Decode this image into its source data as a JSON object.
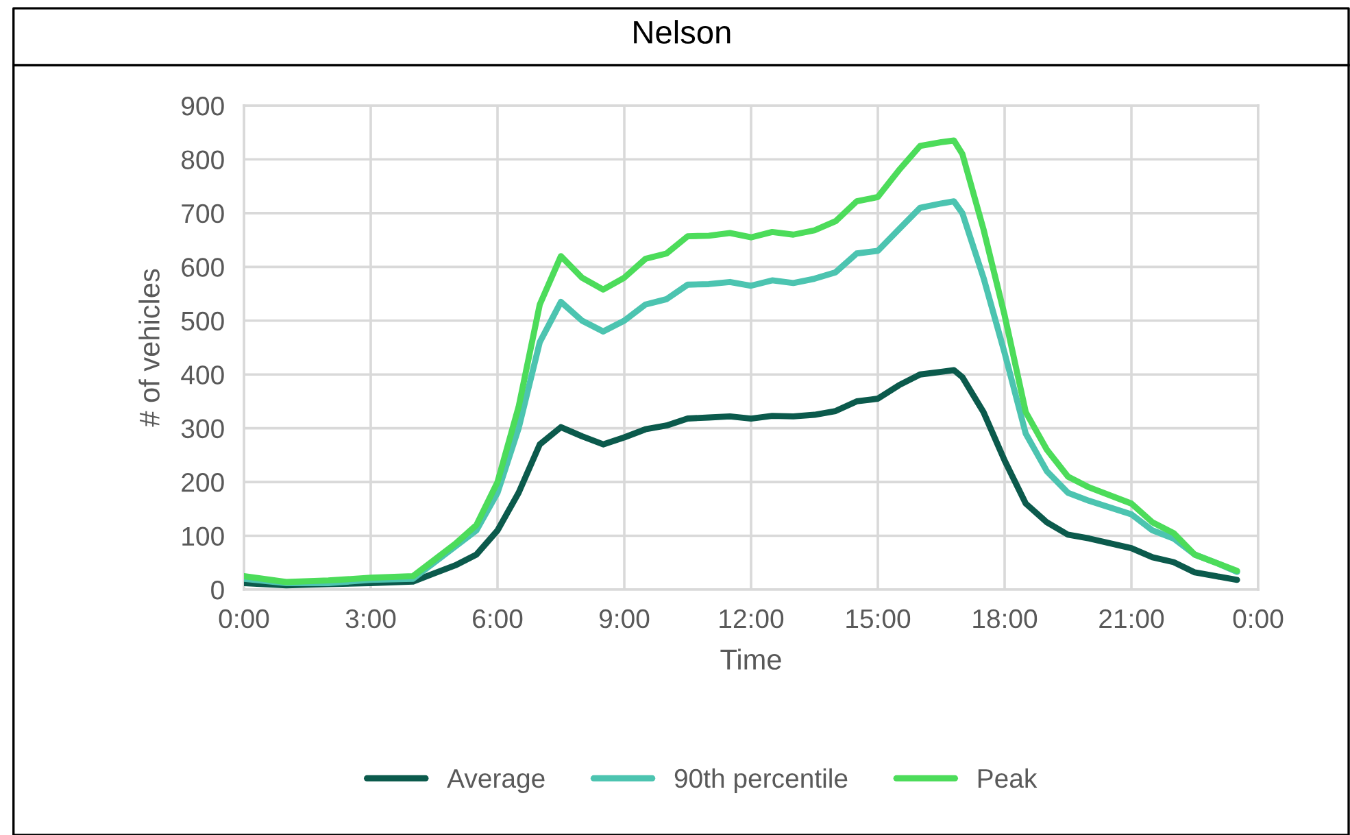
{
  "chart_data": {
    "type": "line",
    "title": "Nelson",
    "xlabel": "Time",
    "ylabel": "# of vehicles",
    "x": [
      0,
      1,
      2,
      3,
      4,
      4.5,
      5,
      5.5,
      6,
      6.5,
      7,
      7.5,
      8,
      8.5,
      9,
      9.5,
      10,
      10.5,
      11,
      11.5,
      12,
      12.5,
      13,
      13.5,
      14,
      14.5,
      15,
      15.5,
      16,
      16.5,
      16.8,
      17,
      17.5,
      18,
      18.5,
      19,
      19.5,
      20,
      21,
      21.5,
      22,
      22.5,
      23,
      23.5
    ],
    "series": [
      {
        "name": "Average",
        "color": "#0b5a4c",
        "values": [
          12,
          8,
          10,
          12,
          15,
          30,
          45,
          65,
          110,
          180,
          270,
          302,
          285,
          270,
          283,
          298,
          305,
          318,
          320,
          322,
          318,
          323,
          322,
          325,
          332,
          350,
          355,
          380,
          400,
          405,
          408,
          395,
          330,
          240,
          160,
          125,
          102,
          95,
          77,
          60,
          51,
          32,
          25,
          18
        ]
      },
      {
        "name": "90th percentile",
        "color": "#4cc4b0",
        "values": [
          20,
          12,
          12,
          18,
          20,
          50,
          80,
          110,
          180,
          300,
          460,
          535,
          500,
          480,
          500,
          530,
          540,
          567,
          568,
          572,
          565,
          575,
          570,
          578,
          590,
          625,
          630,
          670,
          710,
          718,
          722,
          700,
          580,
          440,
          290,
          220,
          180,
          165,
          140,
          110,
          95,
          65,
          50,
          33
        ]
      },
      {
        "name": "Peak",
        "color": "#4cdc5a",
        "values": [
          25,
          14,
          17,
          22,
          25,
          55,
          85,
          120,
          200,
          340,
          530,
          620,
          580,
          558,
          580,
          615,
          625,
          657,
          658,
          663,
          655,
          665,
          660,
          668,
          685,
          722,
          730,
          780,
          825,
          832,
          835,
          810,
          670,
          510,
          330,
          260,
          210,
          190,
          160,
          125,
          105,
          65,
          50,
          35
        ]
      }
    ],
    "xlim": [
      0,
      24
    ],
    "xticks": [
      {
        "value": 0,
        "label": "0:00"
      },
      {
        "value": 3,
        "label": "3:00"
      },
      {
        "value": 6,
        "label": "6:00"
      },
      {
        "value": 9,
        "label": "9:00"
      },
      {
        "value": 12,
        "label": "12:00"
      },
      {
        "value": 15,
        "label": "15:00"
      },
      {
        "value": 18,
        "label": "18:00"
      },
      {
        "value": 21,
        "label": "21:00"
      },
      {
        "value": 24,
        "label": "0:00"
      }
    ],
    "ylim": [
      0,
      900
    ],
    "yticks": [
      0,
      100,
      200,
      300,
      400,
      500,
      600,
      700,
      800,
      900
    ],
    "grid": true,
    "legend": "bottom",
    "marker": "none",
    "line_style": "solid"
  }
}
